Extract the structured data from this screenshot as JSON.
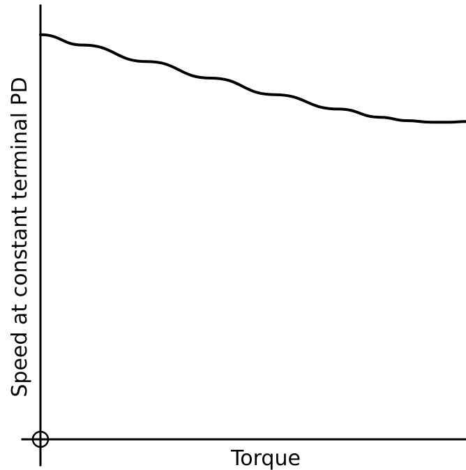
{
  "chart_data": {
    "type": "line",
    "title": "",
    "xlabel": "Torque",
    "ylabel": "Speed at constant terminal PD",
    "xlim": [
      0,
      1
    ],
    "ylim": [
      0,
      1
    ],
    "grid": false,
    "series": [
      {
        "x": [
          0,
          0.1,
          0.25,
          0.4,
          0.55,
          0.7,
          0.8,
          0.86,
          0.92,
          0.96,
          1.0
        ],
        "values": [
          0.98,
          0.955,
          0.915,
          0.875,
          0.835,
          0.8,
          0.78,
          0.772,
          0.768,
          0.768,
          0.77
        ]
      }
    ]
  }
}
